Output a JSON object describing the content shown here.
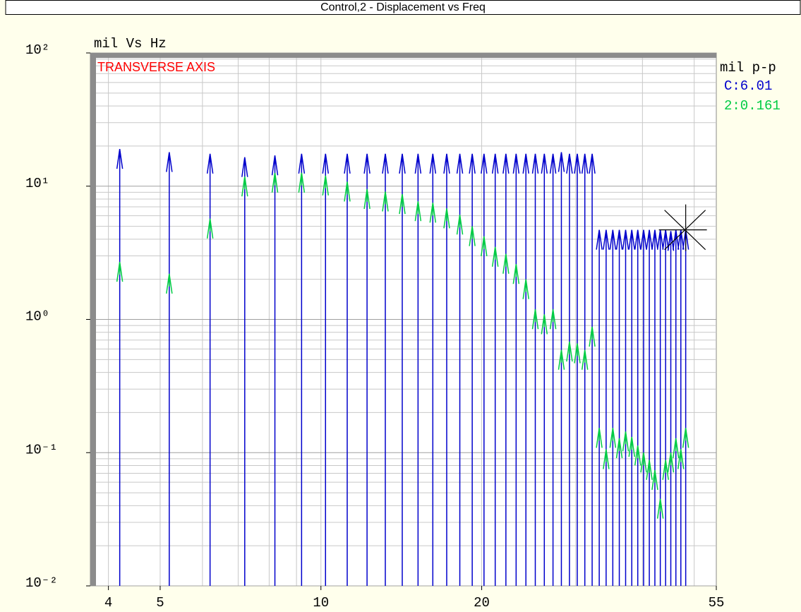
{
  "chart_data": {
    "type": "line-spectrum",
    "title": "Control,2 - Displacement vs Freq",
    "axis_label": "mil Vs Hz",
    "annotation": "TRANSVERSE AXIS",
    "legend_title": "mil p-p",
    "legend_labels": [
      "C:6.01",
      "2:0.161"
    ],
    "x": [
      4.2,
      5.2,
      6.2,
      7.2,
      8.2,
      9.2,
      10.2,
      11.2,
      12.2,
      13.2,
      14.2,
      15.2,
      16.2,
      17.2,
      18.2,
      19.2,
      20.2,
      21.2,
      22.2,
      23.2,
      24.2,
      25.2,
      26.2,
      27.2,
      28.2,
      29.2,
      30.2,
      31.2,
      32.2,
      33.2,
      34.2,
      35.2,
      36.2,
      37.2,
      38.2,
      39.2,
      40.2,
      41.2,
      42.2,
      43.2,
      44.2,
      45.2,
      46.2,
      47.2,
      48.2
    ],
    "series": [
      {
        "color": "#0000cc",
        "values": [
          19,
          18,
          17.5,
          16.5,
          17,
          17.5,
          17.5,
          17.5,
          17.5,
          17.5,
          17.5,
          17.5,
          17.5,
          17.5,
          17.5,
          17.5,
          17.5,
          17.5,
          17.5,
          17.5,
          17.5,
          17.5,
          17.5,
          17.5,
          18,
          17.5,
          17.5,
          17.5,
          17.5,
          4.7,
          4.7,
          4.7,
          4.7,
          4.7,
          4.7,
          4.7,
          4.7,
          4.7,
          4.7,
          4.7,
          4.7,
          4.6,
          4.7,
          4.7,
          4.7
        ]
      },
      {
        "color": "#00cc44",
        "values": [
          2.7,
          2.2,
          5.7,
          11.8,
          12.6,
          12.6,
          12,
          10.8,
          9.5,
          9.1,
          8.7,
          7.7,
          7.5,
          6.8,
          6.1,
          5.0,
          4.2,
          3.5,
          3.1,
          2.6,
          2.0,
          1.19,
          1.09,
          1.19,
          0.59,
          0.68,
          0.66,
          0.59,
          0.88,
          0.153,
          0.106,
          0.153,
          0.128,
          0.144,
          0.131,
          0.113,
          0.1,
          0.088,
          0.074,
          0.045,
          0.088,
          0.1,
          0.128,
          0.106,
          0.153
        ]
      }
    ],
    "log_x": true,
    "log_y": true,
    "grid": true,
    "xlim": [
      3.7,
      55
    ],
    "xticks": [
      4,
      5,
      10,
      20,
      55
    ],
    "ylim": [
      0.01,
      100
    ],
    "yticks": [
      {
        "value": 100,
        "label": "10²"
      },
      {
        "value": 10,
        "label": "10¹"
      },
      {
        "value": 1,
        "label": "10⁰"
      },
      {
        "value": 0.1,
        "label": "10⁻¹"
      },
      {
        "value": 0.01,
        "label": "10⁻²"
      }
    ]
  }
}
